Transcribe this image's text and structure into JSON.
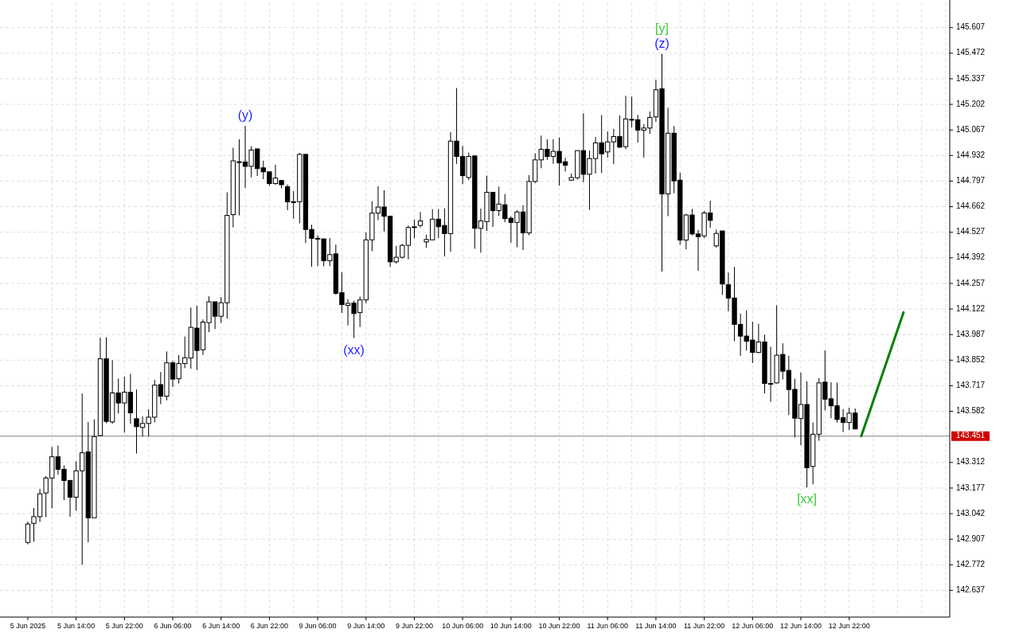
{
  "chart_data": {
    "type": "candlestick",
    "categories": [
      "5 Jun 2025",
      null,
      null,
      null,
      null,
      null,
      null,
      null,
      "5 Jun 14:00",
      null,
      null,
      null,
      null,
      null,
      null,
      null,
      "5 Jun 22:00",
      null,
      null,
      null,
      null,
      null,
      null,
      null,
      "6 Jun 06:00",
      null,
      null,
      null,
      null,
      null,
      null,
      null,
      "6 Jun 14:00",
      null,
      null,
      null,
      null,
      null,
      null,
      null,
      "6 Jun 22:00",
      null,
      null,
      null,
      null,
      null,
      null,
      null,
      "9 Jun 06:00",
      null,
      null,
      null,
      null,
      null,
      null,
      null,
      "9 Jun 14:00",
      null,
      null,
      null,
      null,
      null,
      null,
      null,
      "9 Jun 22:00",
      null,
      null,
      null,
      null,
      null,
      null,
      null,
      "10 Jun 06:00",
      null,
      null,
      null,
      null,
      null,
      null,
      null,
      "10 Jun 14:00",
      null,
      null,
      null,
      null,
      null,
      null,
      null,
      "10 Jun 22:00",
      null,
      null,
      null,
      null,
      null,
      null,
      null,
      "11 Jun 06:00",
      null,
      null,
      null,
      null,
      null,
      null,
      null,
      "11 Jun 14:00",
      null,
      null,
      null,
      null,
      null,
      null,
      null,
      "11 Jun 22:00",
      null,
      null,
      null,
      null,
      null,
      null,
      null,
      "12 Jun 06:00",
      null,
      null,
      null,
      null,
      null,
      null,
      null,
      "12 Jun 14:00",
      null,
      null,
      null,
      null,
      null,
      null,
      null,
      "12 Jun 22:00",
      null,
      null,
      null,
      null,
      null,
      null,
      null,
      null,
      null,
      null,
      null,
      null,
      null,
      null,
      null,
      null
    ],
    "ohlc": [
      [
        142.89,
        143.0,
        142.88,
        142.987
      ],
      [
        142.991,
        143.072,
        142.894,
        143.026
      ],
      [
        143.026,
        143.172,
        142.998,
        143.147
      ],
      [
        143.151,
        143.241,
        143.023,
        143.23
      ],
      [
        143.23,
        143.394,
        143.07,
        143.342
      ],
      [
        143.342,
        143.401,
        143.248,
        143.276
      ],
      [
        143.276,
        143.297,
        143.113,
        143.217
      ],
      [
        143.217,
        143.22,
        143.026,
        143.129
      ],
      [
        143.129,
        143.318,
        143.058,
        143.268
      ],
      [
        143.268,
        143.676,
        142.772,
        143.363
      ],
      [
        143.368,
        143.526,
        142.891,
        143.02
      ],
      [
        143.02,
        143.54,
        143.02,
        143.449
      ],
      [
        143.454,
        143.97,
        143.45,
        143.859
      ],
      [
        143.859,
        143.973,
        143.519,
        143.529
      ],
      [
        143.526,
        143.852,
        143.516,
        143.679
      ],
      [
        143.679,
        143.755,
        143.57,
        143.626
      ],
      [
        143.626,
        143.765,
        143.47,
        143.683
      ],
      [
        143.682,
        143.78,
        143.516,
        143.574
      ],
      [
        143.543,
        143.697,
        143.359,
        143.501
      ],
      [
        143.497,
        143.556,
        143.449,
        143.518
      ],
      [
        143.518,
        143.593,
        143.449,
        143.551
      ],
      [
        143.551,
        143.748,
        143.523,
        143.72
      ],
      [
        143.723,
        143.79,
        143.62,
        143.662
      ],
      [
        143.662,
        143.898,
        143.64,
        143.838
      ],
      [
        143.838,
        143.848,
        143.711,
        143.752
      ],
      [
        143.754,
        143.879,
        143.729,
        143.834
      ],
      [
        143.834,
        143.977,
        143.81,
        143.865
      ],
      [
        143.863,
        144.129,
        143.807,
        144.025
      ],
      [
        144.021,
        144.139,
        143.799,
        143.903
      ],
      [
        143.907,
        144.067,
        143.879,
        144.053
      ],
      [
        144.05,
        144.189,
        144.0,
        144.16
      ],
      [
        144.16,
        144.16,
        144.016,
        144.084
      ],
      [
        144.084,
        144.185,
        144.049,
        144.155
      ],
      [
        144.155,
        144.738,
        144.071,
        144.616
      ],
      [
        144.62,
        144.973,
        144.553,
        144.904
      ],
      [
        144.899,
        145.018,
        144.616,
        144.899
      ],
      [
        144.898,
        145.088,
        144.761,
        144.875
      ],
      [
        144.875,
        144.981,
        144.817,
        144.961
      ],
      [
        144.967,
        144.967,
        144.824,
        144.863
      ],
      [
        144.867,
        144.905,
        144.807,
        144.846
      ],
      [
        144.846,
        144.846,
        144.771,
        144.784
      ],
      [
        144.784,
        144.884,
        144.778,
        144.813
      ],
      [
        144.8,
        144.804,
        144.759,
        144.778
      ],
      [
        144.767,
        144.779,
        144.643,
        144.688
      ],
      [
        144.688,
        144.745,
        144.599,
        144.688
      ],
      [
        144.688,
        144.946,
        144.574,
        144.938
      ],
      [
        144.938,
        144.938,
        144.47,
        144.542
      ],
      [
        144.542,
        144.567,
        144.345,
        144.495
      ],
      [
        144.495,
        144.511,
        144.349,
        144.495
      ],
      [
        144.492,
        144.492,
        144.348,
        144.377
      ],
      [
        144.377,
        144.496,
        144.348,
        144.409
      ],
      [
        144.413,
        144.462,
        144.198,
        144.205
      ],
      [
        144.208,
        144.316,
        144.101,
        144.145
      ],
      [
        144.141,
        144.174,
        144.035,
        144.152
      ],
      [
        144.153,
        144.166,
        143.969,
        144.098
      ],
      [
        144.103,
        144.188,
        144.027,
        144.17
      ],
      [
        144.17,
        144.527,
        144.152,
        144.487
      ],
      [
        144.487,
        144.691,
        144.427,
        144.628
      ],
      [
        144.628,
        144.77,
        144.591,
        144.66
      ],
      [
        144.66,
        144.749,
        144.531,
        144.612
      ],
      [
        144.612,
        144.612,
        144.344,
        144.371
      ],
      [
        144.371,
        144.455,
        144.362,
        144.395
      ],
      [
        144.395,
        144.466,
        144.388,
        144.458
      ],
      [
        144.458,
        144.563,
        144.385,
        144.552
      ],
      [
        144.556,
        144.594,
        144.496,
        144.556
      ],
      [
        144.563,
        144.633,
        144.552,
        144.587
      ],
      [
        144.476,
        144.514,
        144.445,
        144.489
      ],
      [
        144.487,
        144.649,
        144.487,
        144.596
      ],
      [
        144.596,
        144.649,
        144.496,
        144.556
      ],
      [
        144.563,
        144.653,
        144.399,
        144.52
      ],
      [
        144.52,
        145.056,
        144.424,
        145.008
      ],
      [
        145.008,
        145.288,
        144.888,
        144.927
      ],
      [
        144.927,
        144.983,
        144.781,
        144.826
      ],
      [
        144.816,
        144.947,
        144.802,
        144.927
      ],
      [
        144.93,
        144.93,
        144.44,
        144.548
      ],
      [
        144.548,
        144.652,
        144.419,
        144.587
      ],
      [
        144.583,
        144.826,
        144.534,
        144.738
      ],
      [
        144.738,
        144.738,
        144.555,
        144.641
      ],
      [
        144.641,
        144.768,
        144.613,
        144.676
      ],
      [
        144.672,
        144.729,
        144.58,
        144.599
      ],
      [
        144.601,
        144.611,
        144.472,
        144.579
      ],
      [
        144.579,
        144.643,
        144.448,
        144.634
      ],
      [
        144.634,
        144.67,
        144.433,
        144.524
      ],
      [
        144.524,
        144.829,
        144.511,
        144.795
      ],
      [
        144.795,
        144.944,
        144.787,
        144.909
      ],
      [
        144.909,
        145.037,
        144.865,
        144.965
      ],
      [
        144.965,
        145.018,
        144.909,
        144.927
      ],
      [
        144.927,
        145.018,
        144.888,
        144.954
      ],
      [
        144.954,
        145.027,
        144.773,
        144.893
      ],
      [
        144.899,
        144.92,
        144.847,
        144.881
      ],
      [
        144.802,
        144.837,
        144.798,
        144.816
      ],
      [
        144.815,
        144.958,
        144.805,
        144.958
      ],
      [
        144.958,
        145.155,
        144.791,
        144.833
      ],
      [
        144.833,
        144.958,
        144.645,
        144.916
      ],
      [
        144.916,
        145.03,
        144.837,
        144.999
      ],
      [
        144.999,
        145.145,
        144.84,
        144.941
      ],
      [
        144.951,
        145.059,
        144.921,
        145.004
      ],
      [
        145.004,
        145.073,
        144.886,
        145.032
      ],
      [
        145.032,
        145.143,
        144.972,
        144.976
      ],
      [
        144.979,
        145.247,
        144.965,
        145.125
      ],
      [
        145.123,
        145.243,
        145.08,
        145.123
      ],
      [
        145.121,
        145.147,
        145.0,
        145.066
      ],
      [
        145.066,
        145.097,
        144.921,
        145.077
      ],
      [
        145.077,
        145.164,
        145.046,
        145.133
      ],
      [
        145.136,
        145.333,
        145.111,
        145.279
      ],
      [
        145.284,
        145.469,
        144.319,
        144.729
      ],
      [
        144.729,
        145.184,
        144.612,
        145.05
      ],
      [
        145.05,
        145.087,
        144.733,
        144.798
      ],
      [
        144.802,
        144.841,
        144.462,
        144.486
      ],
      [
        144.486,
        144.625,
        144.437,
        144.618
      ],
      [
        144.618,
        144.65,
        144.511,
        144.518
      ],
      [
        144.518,
        144.539,
        144.323,
        144.504
      ],
      [
        144.508,
        144.639,
        144.497,
        144.629
      ],
      [
        144.629,
        144.694,
        144.55,
        144.59
      ],
      [
        144.455,
        144.541,
        144.446,
        144.521
      ],
      [
        144.534,
        144.534,
        144.196,
        144.254
      ],
      [
        144.25,
        144.314,
        144.111,
        144.18
      ],
      [
        144.18,
        144.344,
        143.952,
        144.041
      ],
      [
        144.041,
        144.097,
        143.875,
        143.979
      ],
      [
        143.979,
        144.115,
        143.902,
        143.952
      ],
      [
        143.958,
        144.055,
        143.837,
        143.893
      ],
      [
        143.893,
        144.044,
        143.889,
        143.948
      ],
      [
        143.948,
        143.986,
        143.676,
        143.729
      ],
      [
        143.729,
        143.923,
        143.632,
        143.729
      ],
      [
        143.732,
        144.141,
        143.729,
        143.878
      ],
      [
        143.882,
        143.941,
        143.75,
        143.794
      ],
      [
        143.798,
        143.875,
        143.562,
        143.697
      ],
      [
        143.698,
        143.754,
        143.444,
        143.546
      ],
      [
        143.544,
        143.787,
        143.403,
        143.618
      ],
      [
        143.618,
        143.74,
        143.18,
        143.284
      ],
      [
        143.291,
        143.523,
        143.197,
        143.461
      ],
      [
        143.461,
        143.757,
        143.427,
        143.732
      ],
      [
        143.736,
        143.903,
        143.587,
        143.646
      ],
      [
        143.648,
        143.736,
        143.546,
        143.611
      ],
      [
        143.611,
        143.733,
        143.523,
        143.539
      ],
      [
        143.548,
        143.594,
        143.472,
        143.523
      ],
      [
        143.523,
        143.601,
        143.483,
        143.572
      ],
      [
        143.573,
        143.597,
        143.486,
        143.489
      ],
      null,
      null,
      null,
      null,
      null,
      null,
      null,
      null,
      null,
      null,
      null,
      null,
      null,
      null,
      null
    ],
    "series": [
      {
        "type": "line",
        "color": "#008000",
        "values": [
          null,
          null,
          null,
          null,
          null,
          null,
          null,
          null,
          null,
          null,
          null,
          null,
          null,
          null,
          null,
          null,
          null,
          null,
          null,
          null,
          null,
          null,
          null,
          null,
          null,
          null,
          null,
          null,
          null,
          null,
          null,
          null,
          null,
          null,
          null,
          null,
          null,
          null,
          null,
          null,
          null,
          null,
          null,
          null,
          null,
          null,
          null,
          null,
          null,
          null,
          null,
          null,
          null,
          null,
          null,
          null,
          null,
          null,
          null,
          null,
          null,
          null,
          null,
          null,
          null,
          null,
          null,
          null,
          null,
          null,
          null,
          null,
          null,
          null,
          null,
          null,
          null,
          null,
          null,
          null,
          null,
          null,
          null,
          null,
          null,
          null,
          null,
          null,
          null,
          null,
          null,
          null,
          null,
          null,
          null,
          null,
          null,
          null,
          null,
          null,
          null,
          null,
          null,
          null,
          null,
          null,
          null,
          null,
          null,
          null,
          null,
          null,
          null,
          null,
          null,
          null,
          null,
          null,
          null,
          null,
          null,
          null,
          null,
          null,
          null,
          null,
          null,
          null,
          null,
          null,
          null,
          null,
          null,
          null,
          null,
          null,
          null,
          null,
          143.451,
          null,
          null,
          null,
          null,
          null,
          null,
          144.104,
          null,
          null,
          null,
          null,
          null,
          null,
          null
        ]
      }
    ],
    "ylim": [
      142.496,
      145.736
    ],
    "yticks": [
      142.637,
      142.772,
      142.907,
      143.042,
      143.177,
      143.312,
      143.582,
      143.717,
      143.852,
      143.987,
      144.122,
      144.257,
      144.392,
      144.527,
      144.662,
      144.797,
      144.932,
      145.067,
      145.202,
      145.337,
      145.472,
      145.607
    ],
    "grid": true,
    "ref_lines": [
      {
        "axis": "y",
        "value": 143.451,
        "label": "143.451",
        "color": "#808080"
      }
    ],
    "annotations": [
      "(y)",
      "(xx)",
      "(z)",
      "[y]",
      "[xx]"
    ]
  }
}
